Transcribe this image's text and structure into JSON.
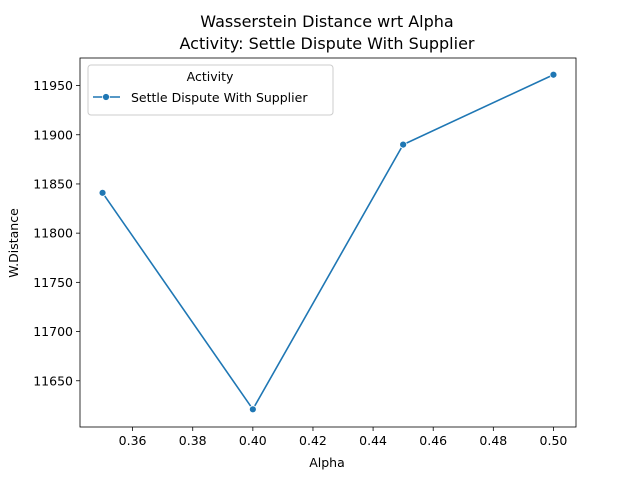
{
  "chart_data": {
    "type": "line",
    "title": "Wasserstein Distance wrt Alpha",
    "subtitle": "Activity: Settle Dispute With Supplier",
    "xlabel": "Alpha",
    "ylabel": "W.Distance",
    "x": [
      0.35,
      0.4,
      0.45,
      0.5
    ],
    "series": [
      {
        "name": "Settle Dispute With Supplier",
        "values": [
          11841,
          11621,
          11890,
          11961
        ],
        "color": "#1f77b4"
      }
    ],
    "xlim": [
      0.3425,
      0.5075
    ],
    "ylim": [
      11603,
      11978
    ],
    "xticks": [
      0.36,
      0.38,
      0.4,
      0.42,
      0.44,
      0.46,
      0.48,
      0.5
    ],
    "xtick_labels": [
      "0.36",
      "0.38",
      "0.40",
      "0.42",
      "0.44",
      "0.46",
      "0.48",
      "0.50"
    ],
    "yticks": [
      11650,
      11700,
      11750,
      11800,
      11850,
      11900,
      11950
    ],
    "ytick_labels": [
      "11650",
      "11700",
      "11750",
      "11800",
      "11850",
      "11900",
      "11950"
    ],
    "legend": {
      "title": "Activity",
      "placement": "top-left"
    },
    "grid": false
  }
}
